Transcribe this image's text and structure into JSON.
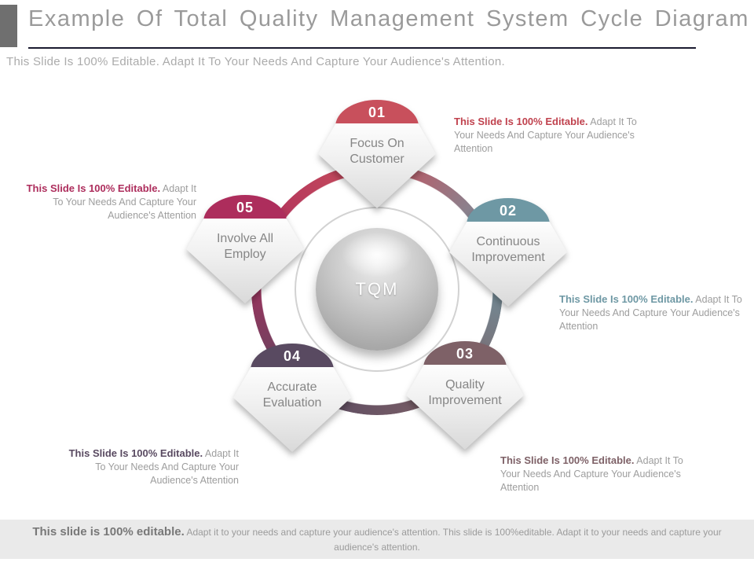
{
  "slide": {
    "title": "Example Of Total Quality Management System Cycle Diagram",
    "subtitle": "This Slide Is 100% Editable. Adapt It To Your Needs And Capture Your Audience's Attention."
  },
  "diagram": {
    "center_label": "TQM",
    "nodes": [
      {
        "number": "01",
        "label": "Focus On Customer",
        "color": "#c8505c"
      },
      {
        "number": "02",
        "label": "Continuous Improvement",
        "color": "#6e98a4"
      },
      {
        "number": "03",
        "label": "Quality Improvement",
        "color": "#7e6167"
      },
      {
        "number": "04",
        "label": "Accurate Evaluation",
        "color": "#594a61"
      },
      {
        "number": "05",
        "label": "Involve All Employ",
        "color": "#ad2d5c"
      }
    ],
    "ring_colors": [
      "#c8505c",
      "#6e98a4",
      "#7e6167",
      "#594a61",
      "#ad2d5c"
    ]
  },
  "annotations": [
    {
      "lead": "This Slide Is 100% Editable.",
      "rest": " Adapt It To Your Needs And Capture Your Audience's Attention",
      "color": "#c0424e"
    },
    {
      "lead": "This Slide Is 100% Editable.",
      "rest": " Adapt It To Your Needs And Capture Your Audience's Attention",
      "color": "#6e98a4"
    },
    {
      "lead": "This Slide Is 100% Editable.",
      "rest": " Adapt It To Your Needs And Capture Your Audience's Attention",
      "color": "#7e6167"
    },
    {
      "lead": "This Slide Is 100% Editable.",
      "rest": " Adapt It To Your Needs And Capture Your Audience's Attention",
      "color": "#594a61"
    },
    {
      "lead": "This Slide Is 100% Editable.",
      "rest": " Adapt It To Your Needs And Capture Your Audience's Attention",
      "color": "#ad2d5c"
    }
  ],
  "footer": {
    "lead": "This slide is 100% editable.",
    "rest": " Adapt it to your needs and capture your audience's attention. This slide is 100%editable. Adapt it to your needs and capture your audience's attention."
  }
}
